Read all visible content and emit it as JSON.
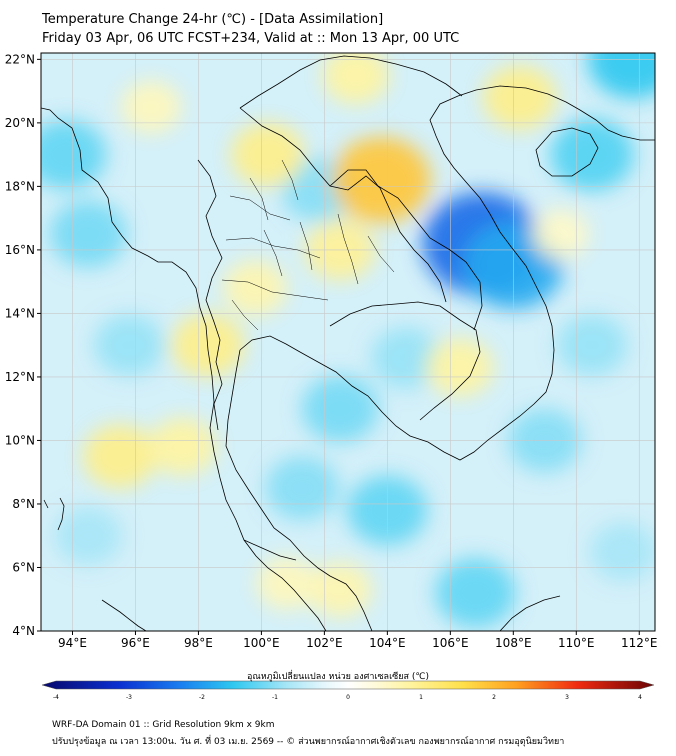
{
  "header": {
    "title_line1": "Temperature Change 24-hr (℃) - [Data Assimilation]",
    "title_line2": "Friday 03 Apr, 06 UTC FCST+234, Valid at :: Mon 13 Apr, 00 UTC"
  },
  "map": {
    "lon_range": [
      93,
      112.5
    ],
    "lat_range": [
      4,
      22.2
    ],
    "lon_ticks": [
      94,
      96,
      98,
      100,
      102,
      104,
      106,
      108,
      110,
      112
    ],
    "lon_tick_labels": [
      "94°E",
      "96°E",
      "98°E",
      "100°E",
      "102°E",
      "104°E",
      "106°E",
      "108°E",
      "110°E",
      "112°E"
    ],
    "lat_ticks": [
      4,
      6,
      8,
      10,
      12,
      14,
      16,
      18,
      20,
      22
    ],
    "lat_tick_labels": [
      "4°N",
      "6°N",
      "8°N",
      "10°N",
      "12°N",
      "14°N",
      "16°N",
      "18°N",
      "20°N",
      "22°N"
    ],
    "gridlines": true,
    "field_blobs": [
      {
        "lon": 107.0,
        "lat": 16.2,
        "value": -2.4
      },
      {
        "lon": 108.0,
        "lat": 15.5,
        "value": -1.8
      },
      {
        "lon": 110.5,
        "lat": 19.0,
        "value": -1.3
      },
      {
        "lon": 111.8,
        "lat": 22.0,
        "value": -1.5
      },
      {
        "lon": 93.8,
        "lat": 19.0,
        "value": -1.2
      },
      {
        "lon": 94.5,
        "lat": 16.5,
        "value": -1.1
      },
      {
        "lon": 101.8,
        "lat": 17.9,
        "value": -1.0
      },
      {
        "lon": 102.5,
        "lat": 11.0,
        "value": -1.1
      },
      {
        "lon": 104.0,
        "lat": 7.8,
        "value": -1.2
      },
      {
        "lon": 101.3,
        "lat": 8.5,
        "value": -1.0
      },
      {
        "lon": 109.0,
        "lat": 10.0,
        "value": -1.0
      },
      {
        "lon": 106.8,
        "lat": 5.2,
        "value": -1.2
      },
      {
        "lon": 95.8,
        "lat": 13.0,
        "value": -0.9
      },
      {
        "lon": 104.6,
        "lat": 12.6,
        "value": -0.9
      },
      {
        "lon": 110.5,
        "lat": 13.0,
        "value": -0.9
      },
      {
        "lon": 111.5,
        "lat": 6.5,
        "value": -0.8
      },
      {
        "lon": 94.5,
        "lat": 7.0,
        "value": -0.8
      },
      {
        "lon": 103.8,
        "lat": 18.2,
        "value": 1.8
      },
      {
        "lon": 102.5,
        "lat": 16.0,
        "value": 0.9
      },
      {
        "lon": 100.2,
        "lat": 19.0,
        "value": 1.0
      },
      {
        "lon": 98.3,
        "lat": 13.0,
        "value": 1.0
      },
      {
        "lon": 95.5,
        "lat": 9.5,
        "value": 1.0
      },
      {
        "lon": 97.5,
        "lat": 9.8,
        "value": 0.8
      },
      {
        "lon": 108.2,
        "lat": 20.8,
        "value": 1.0
      },
      {
        "lon": 103.0,
        "lat": 21.5,
        "value": 0.8
      },
      {
        "lon": 106.3,
        "lat": 12.3,
        "value": 0.8
      },
      {
        "lon": 102.5,
        "lat": 5.3,
        "value": 0.7
      },
      {
        "lon": 100.8,
        "lat": 5.5,
        "value": 0.6
      },
      {
        "lon": 99.8,
        "lat": 14.8,
        "value": 0.7
      },
      {
        "lon": 96.5,
        "lat": 20.5,
        "value": 0.6
      },
      {
        "lon": 109.5,
        "lat": 16.5,
        "value": 0.5
      }
    ]
  },
  "colorbar": {
    "title": "อุณหภูมิเปลี่ยนแปลง หน่วย องศาเซลเซียส (℃)",
    "min": -4,
    "max": 4,
    "ticks": [
      -4,
      -3,
      -2,
      -1,
      0,
      1,
      2,
      3,
      4
    ],
    "tick_labels": [
      "-4",
      "-3",
      "-2",
      "-1",
      "0",
      "1",
      "2",
      "3",
      "4"
    ],
    "stops": [
      {
        "v": -4.0,
        "c": "#08086b"
      },
      {
        "v": -3.0,
        "c": "#0a2fd0"
      },
      {
        "v": -2.2,
        "c": "#1a7ef0"
      },
      {
        "v": -1.5,
        "c": "#2ec8f0"
      },
      {
        "v": -0.8,
        "c": "#a6e6f7"
      },
      {
        "v": -0.3,
        "c": "#e6f7fc"
      },
      {
        "v": 0.0,
        "c": "#ffffff"
      },
      {
        "v": 0.3,
        "c": "#fffbe0"
      },
      {
        "v": 0.8,
        "c": "#fff4a0"
      },
      {
        "v": 1.5,
        "c": "#ffe04a"
      },
      {
        "v": 2.2,
        "c": "#ffa020"
      },
      {
        "v": 3.0,
        "c": "#f02a10"
      },
      {
        "v": 4.0,
        "c": "#6a0404"
      }
    ]
  },
  "footer": {
    "line1": "WRF-DA Domain 01 :: Grid Resolution 9km x 9km",
    "line2": "ปรับปรุงข้อมูล ณ เวลา 13:00น. วัน ศ. ที่ 03 เม.ย. 2569 -- © ส่วนพยากรณ์อากาศเชิงตัวเลข กองพยากรณ์อากาศ กรมอุตุนิยมวิทยา"
  },
  "colors": {
    "background": "#ffffff",
    "border": "#000000",
    "gridline": "#c8c8c8",
    "coastline": "#000000"
  }
}
